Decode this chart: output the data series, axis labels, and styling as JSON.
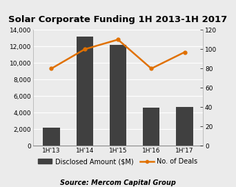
{
  "categories": [
    "1H'13",
    "1H'14",
    "1H'15",
    "1H'16",
    "1H'17"
  ],
  "bar_values": [
    2200,
    13200,
    12200,
    4600,
    4700
  ],
  "line_values": [
    80,
    100,
    110,
    80,
    97
  ],
  "bar_color": "#404040",
  "line_color": "#E07000",
  "title": "Solar Corporate Funding 1H 2013-1H 2017",
  "ylim_left": [
    0,
    14000
  ],
  "ylim_right": [
    0,
    120
  ],
  "yticks_left": [
    0,
    2000,
    4000,
    6000,
    8000,
    10000,
    12000,
    14000
  ],
  "yticks_right": [
    0,
    20,
    40,
    60,
    80,
    100,
    120
  ],
  "legend_bar_label": "Disclosed Amount ($M)",
  "legend_line_label": "No. of Deals",
  "source_text": "Source: Mercom Capital Group",
  "bg_color": "#ebebeb",
  "title_fontsize": 9.5,
  "label_fontsize": 7,
  "tick_fontsize": 6.5,
  "source_fontsize": 7
}
